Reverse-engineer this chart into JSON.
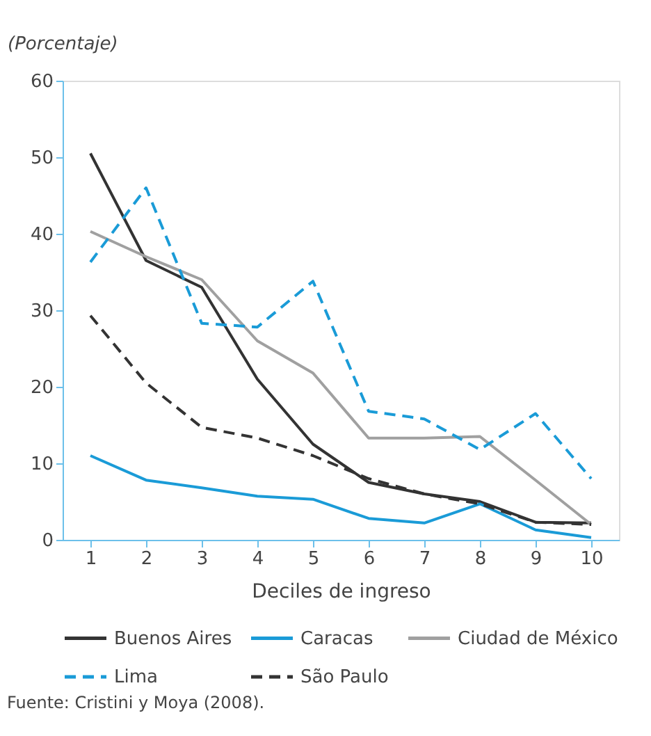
{
  "chart_data": {
    "type": "line",
    "ylabel": "(Porcentaje)",
    "xlabel": "Deciles de ingreso",
    "categories": [
      "1",
      "2",
      "3",
      "4",
      "5",
      "6",
      "7",
      "8",
      "9",
      "10"
    ],
    "series": [
      {
        "name": "Buenos Aires",
        "color": "#333333",
        "line_style": "solid",
        "values": [
          50.5,
          36.5,
          33,
          21,
          12.5,
          7.5,
          6,
          5,
          2.3,
          2.2
        ]
      },
      {
        "name": "Caracas",
        "color": "#1a9bd7",
        "line_style": "solid",
        "values": [
          11,
          7.8,
          6.8,
          5.7,
          5.3,
          2.8,
          2.2,
          4.7,
          1.3,
          0.3
        ]
      },
      {
        "name": "Ciudad de México",
        "color": "#a0a0a0",
        "line_style": "solid",
        "values": [
          40.3,
          37,
          34,
          26,
          21.8,
          13.3,
          13.3,
          13.5,
          7.8,
          2
        ]
      },
      {
        "name": "Lima",
        "color": "#1a9bd7",
        "line_style": "dashed",
        "values": [
          36.3,
          46,
          28.3,
          27.8,
          33.8,
          16.8,
          15.8,
          11.8,
          16.5,
          8
        ]
      },
      {
        "name": "São Paulo",
        "color": "#333333",
        "line_style": "dashed",
        "values": [
          29.3,
          20.5,
          14.7,
          13.3,
          11,
          8,
          6,
          4.7,
          2.3,
          2
        ]
      }
    ],
    "ylim": [
      0,
      60
    ],
    "yticks": [
      0,
      10,
      20,
      30,
      40,
      50,
      60
    ],
    "grid": false,
    "legend": "bottom",
    "marker": "none",
    "annotations": [
      "Fuente: Cristini y Moya (2008)."
    ]
  }
}
